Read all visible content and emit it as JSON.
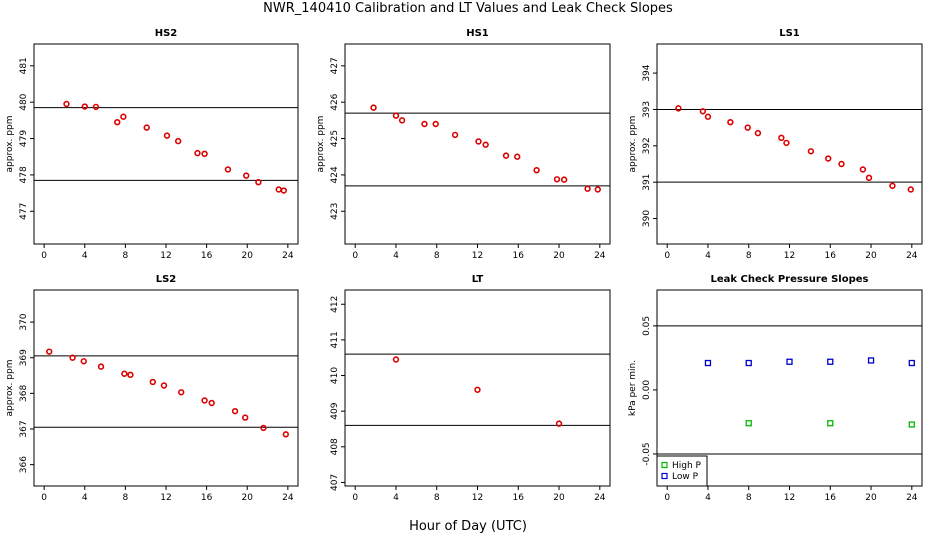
{
  "title": "NWR_140410  Calibration and LT Values and Leak Check Slopes",
  "xlabel": "Hour of Day (UTC)",
  "colors": {
    "points": "#dd0000",
    "high_p": "#00bb00",
    "low_p": "#0000cc",
    "ref_lines": "#000000"
  },
  "chart_data": [
    {
      "type": "scatter",
      "title": "HS2",
      "ylabel": "approx. ppm",
      "xlim": [
        -1,
        25
      ],
      "ylim": [
        476.1,
        481.6
      ],
      "xticks": [
        0,
        4,
        8,
        12,
        16,
        20,
        24
      ],
      "yticks": [
        477,
        478,
        479,
        480,
        481
      ],
      "ref_lines": [
        479.85,
        477.85
      ],
      "series": [
        {
          "x": [
            2.2,
            4,
            5.1,
            7.2,
            7.8,
            10.1,
            12.1,
            13.2,
            15.1,
            15.8,
            18.1,
            19.9,
            21.1,
            23.1,
            23.6
          ],
          "y": [
            479.95,
            479.88,
            479.87,
            479.45,
            479.6,
            479.3,
            479.08,
            478.93,
            478.6,
            478.58,
            478.15,
            477.98,
            477.8,
            477.6,
            477.57
          ]
        }
      ]
    },
    {
      "type": "scatter",
      "title": "HS1",
      "ylabel": "approx. ppm",
      "xlim": [
        -1,
        25
      ],
      "ylim": [
        422.1,
        427.6
      ],
      "xticks": [
        0,
        4,
        8,
        12,
        16,
        20,
        24
      ],
      "yticks": [
        423,
        424,
        425,
        426,
        427
      ],
      "ref_lines": [
        425.7,
        423.7
      ],
      "series": [
        {
          "x": [
            1.8,
            4,
            4.6,
            6.8,
            7.9,
            9.8,
            12.1,
            12.8,
            14.8,
            15.9,
            17.8,
            19.8,
            20.5,
            22.8,
            23.8
          ],
          "y": [
            425.85,
            425.63,
            425.5,
            425.4,
            425.4,
            425.1,
            424.92,
            424.83,
            424.53,
            424.5,
            424.13,
            423.88,
            423.87,
            423.62,
            423.6
          ]
        }
      ]
    },
    {
      "type": "scatter",
      "title": "LS1",
      "ylabel": "approx. ppm",
      "xlim": [
        -1,
        25
      ],
      "ylim": [
        389.3,
        394.8
      ],
      "xticks": [
        0,
        4,
        8,
        12,
        16,
        20,
        24
      ],
      "yticks": [
        390,
        391,
        392,
        393,
        394
      ],
      "ref_lines": [
        393.0,
        391.0
      ],
      "series": [
        {
          "x": [
            1.1,
            3.5,
            4,
            6.2,
            7.9,
            8.9,
            11.2,
            11.7,
            14.1,
            15.8,
            17.1,
            19.2,
            19.8,
            22.1,
            23.9
          ],
          "y": [
            393.03,
            392.95,
            392.8,
            392.65,
            392.5,
            392.35,
            392.22,
            392.08,
            391.85,
            391.65,
            391.5,
            391.35,
            391.12,
            390.9,
            390.8
          ]
        }
      ]
    },
    {
      "type": "scatter",
      "title": "LS2",
      "ylabel": "approx. ppm",
      "xlim": [
        -1,
        25
      ],
      "ylim": [
        365.4,
        370.9
      ],
      "xticks": [
        0,
        4,
        8,
        12,
        16,
        20,
        24
      ],
      "yticks": [
        366,
        367,
        368,
        369,
        370
      ],
      "ref_lines": [
        369.05,
        367.05
      ],
      "series": [
        {
          "x": [
            0.5,
            2.8,
            3.9,
            5.6,
            7.9,
            8.5,
            10.7,
            11.8,
            13.5,
            15.8,
            16.5,
            18.8,
            19.8,
            21.6,
            23.8
          ],
          "y": [
            369.17,
            369.0,
            368.9,
            368.75,
            368.55,
            368.52,
            368.32,
            368.22,
            368.03,
            367.8,
            367.73,
            367.5,
            367.32,
            367.03,
            366.85
          ]
        }
      ]
    },
    {
      "type": "scatter",
      "title": "LT",
      "ylabel": "",
      "xlim": [
        -1,
        25
      ],
      "ylim": [
        406.9,
        412.4
      ],
      "xticks": [
        0,
        4,
        8,
        12,
        16,
        20,
        24
      ],
      "yticks": [
        407,
        408,
        409,
        410,
        411,
        412
      ],
      "ref_lines": [
        410.6,
        408.6
      ],
      "series": [
        {
          "x": [
            4,
            12,
            20
          ],
          "y": [
            410.45,
            409.6,
            408.65
          ]
        }
      ]
    },
    {
      "type": "scatter",
      "title": "Leak Check Pressure Slopes",
      "ylabel": "kPa per min.",
      "xlim": [
        -1,
        25
      ],
      "ylim": [
        -0.075,
        0.078
      ],
      "xticks": [
        0,
        4,
        8,
        12,
        16,
        20,
        24
      ],
      "yticks": [
        -0.05,
        0.0,
        0.05
      ],
      "ytick_labels": [
        "-0.05",
        "0.00",
        "0.05"
      ],
      "ref_lines": [
        0.05,
        -0.05
      ],
      "legend": {
        "position": "bottom-left",
        "entries": [
          "High P",
          "Low P"
        ]
      },
      "series": [
        {
          "name": "High P",
          "color": "#00bb00",
          "x": [
            8,
            16,
            24
          ],
          "y": [
            -0.026,
            -0.026,
            -0.027
          ]
        },
        {
          "name": "Low P",
          "color": "#0000cc",
          "x": [
            4,
            8,
            12,
            16,
            20,
            24
          ],
          "y": [
            0.021,
            0.021,
            0.022,
            0.022,
            0.023,
            0.021
          ]
        }
      ]
    }
  ]
}
